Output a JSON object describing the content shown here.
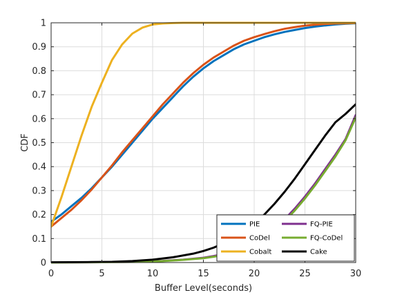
{
  "chart_data": {
    "type": "line",
    "xlabel": "Buffer Level(seconds)",
    "ylabel": "CDF",
    "xlim": [
      0,
      30
    ],
    "ylim": [
      0,
      1
    ],
    "xticks": [
      0,
      5,
      10,
      15,
      20,
      25,
      30
    ],
    "yticks": [
      0,
      0.1,
      0.2,
      0.3,
      0.4,
      0.5,
      0.6,
      0.7,
      0.8,
      0.9,
      1
    ],
    "grid": true,
    "legend": {
      "position": "bottom-right",
      "columns": 2
    },
    "series": [
      {
        "name": "PIE",
        "color": "#0072BD",
        "points": [
          [
            0,
            0.17
          ],
          [
            1,
            0.2
          ],
          [
            2,
            0.235
          ],
          [
            3,
            0.27
          ],
          [
            4,
            0.31
          ],
          [
            5,
            0.355
          ],
          [
            6,
            0.4
          ],
          [
            7,
            0.45
          ],
          [
            8,
            0.5
          ],
          [
            9,
            0.55
          ],
          [
            10,
            0.6
          ],
          [
            11,
            0.645
          ],
          [
            12,
            0.69
          ],
          [
            13,
            0.735
          ],
          [
            14,
            0.775
          ],
          [
            15,
            0.81
          ],
          [
            16,
            0.84
          ],
          [
            17,
            0.865
          ],
          [
            18,
            0.89
          ],
          [
            19,
            0.91
          ],
          [
            20,
            0.925
          ],
          [
            21,
            0.94
          ],
          [
            22,
            0.952
          ],
          [
            23,
            0.962
          ],
          [
            24,
            0.97
          ],
          [
            25,
            0.978
          ],
          [
            26,
            0.984
          ],
          [
            27,
            0.989
          ],
          [
            28,
            0.993
          ],
          [
            29,
            0.996
          ],
          [
            30,
            0.998
          ]
        ]
      },
      {
        "name": "CoDel",
        "color": "#D95319",
        "points": [
          [
            0,
            0.15
          ],
          [
            1,
            0.185
          ],
          [
            2,
            0.22
          ],
          [
            3,
            0.26
          ],
          [
            4,
            0.305
          ],
          [
            5,
            0.355
          ],
          [
            6,
            0.405
          ],
          [
            7,
            0.46
          ],
          [
            8,
            0.51
          ],
          [
            9,
            0.56
          ],
          [
            10,
            0.61
          ],
          [
            11,
            0.66
          ],
          [
            12,
            0.705
          ],
          [
            13,
            0.75
          ],
          [
            14,
            0.79
          ],
          [
            15,
            0.825
          ],
          [
            16,
            0.855
          ],
          [
            17,
            0.88
          ],
          [
            18,
            0.905
          ],
          [
            19,
            0.925
          ],
          [
            20,
            0.94
          ],
          [
            21,
            0.953
          ],
          [
            22,
            0.965
          ],
          [
            23,
            0.975
          ],
          [
            24,
            0.982
          ],
          [
            25,
            0.988
          ],
          [
            26,
            0.992
          ],
          [
            27,
            0.995
          ],
          [
            28,
            0.997
          ],
          [
            29,
            0.998
          ],
          [
            30,
            0.999
          ]
        ]
      },
      {
        "name": "Cobalt",
        "color": "#EDB120",
        "points": [
          [
            0,
            0.15
          ],
          [
            1,
            0.27
          ],
          [
            2,
            0.4
          ],
          [
            3,
            0.53
          ],
          [
            4,
            0.65
          ],
          [
            5,
            0.75
          ],
          [
            6,
            0.845
          ],
          [
            7,
            0.91
          ],
          [
            8,
            0.955
          ],
          [
            9,
            0.98
          ],
          [
            10,
            0.993
          ],
          [
            11,
            0.997
          ],
          [
            12,
            0.999
          ],
          [
            13,
            1
          ],
          [
            30,
            1
          ]
        ]
      },
      {
        "name": "FQ-PIE",
        "color": "#7E2F8E",
        "points": [
          [
            0,
            0
          ],
          [
            4,
            0.001
          ],
          [
            7,
            0.002
          ],
          [
            9,
            0.004
          ],
          [
            11,
            0.007
          ],
          [
            13,
            0.012
          ],
          [
            15,
            0.02
          ],
          [
            16,
            0.027
          ],
          [
            17,
            0.035
          ],
          [
            18,
            0.046
          ],
          [
            19,
            0.06
          ],
          [
            20,
            0.08
          ],
          [
            21,
            0.105
          ],
          [
            22,
            0.14
          ],
          [
            23,
            0.18
          ],
          [
            24,
            0.225
          ],
          [
            25,
            0.275
          ],
          [
            26,
            0.33
          ],
          [
            27,
            0.39
          ],
          [
            28,
            0.45
          ],
          [
            29,
            0.515
          ],
          [
            30,
            0.615
          ]
        ]
      },
      {
        "name": "FQ-CoDel",
        "color": "#77AC30",
        "points": [
          [
            0,
            0
          ],
          [
            4,
            0.001
          ],
          [
            7,
            0.002
          ],
          [
            9,
            0.003
          ],
          [
            11,
            0.006
          ],
          [
            13,
            0.011
          ],
          [
            15,
            0.018
          ],
          [
            16,
            0.024
          ],
          [
            17,
            0.032
          ],
          [
            18,
            0.043
          ],
          [
            19,
            0.057
          ],
          [
            20,
            0.075
          ],
          [
            21,
            0.1
          ],
          [
            22,
            0.133
          ],
          [
            23,
            0.172
          ],
          [
            24,
            0.217
          ],
          [
            25,
            0.267
          ],
          [
            26,
            0.322
          ],
          [
            27,
            0.382
          ],
          [
            28,
            0.442
          ],
          [
            29,
            0.51
          ],
          [
            30,
            0.605
          ]
        ]
      },
      {
        "name": "Cake",
        "color": "#000000",
        "points": [
          [
            0,
            0.001
          ],
          [
            4,
            0.002
          ],
          [
            6,
            0.003
          ],
          [
            8,
            0.006
          ],
          [
            10,
            0.012
          ],
          [
            12,
            0.022
          ],
          [
            14,
            0.037
          ],
          [
            15,
            0.048
          ],
          [
            16,
            0.062
          ],
          [
            17,
            0.08
          ],
          [
            18,
            0.102
          ],
          [
            19,
            0.13
          ],
          [
            20,
            0.162
          ],
          [
            21,
            0.2
          ],
          [
            22,
            0.245
          ],
          [
            23,
            0.295
          ],
          [
            24,
            0.35
          ],
          [
            25,
            0.41
          ],
          [
            26,
            0.47
          ],
          [
            27,
            0.53
          ],
          [
            28,
            0.585
          ],
          [
            29,
            0.62
          ],
          [
            30,
            0.66
          ]
        ]
      }
    ]
  }
}
